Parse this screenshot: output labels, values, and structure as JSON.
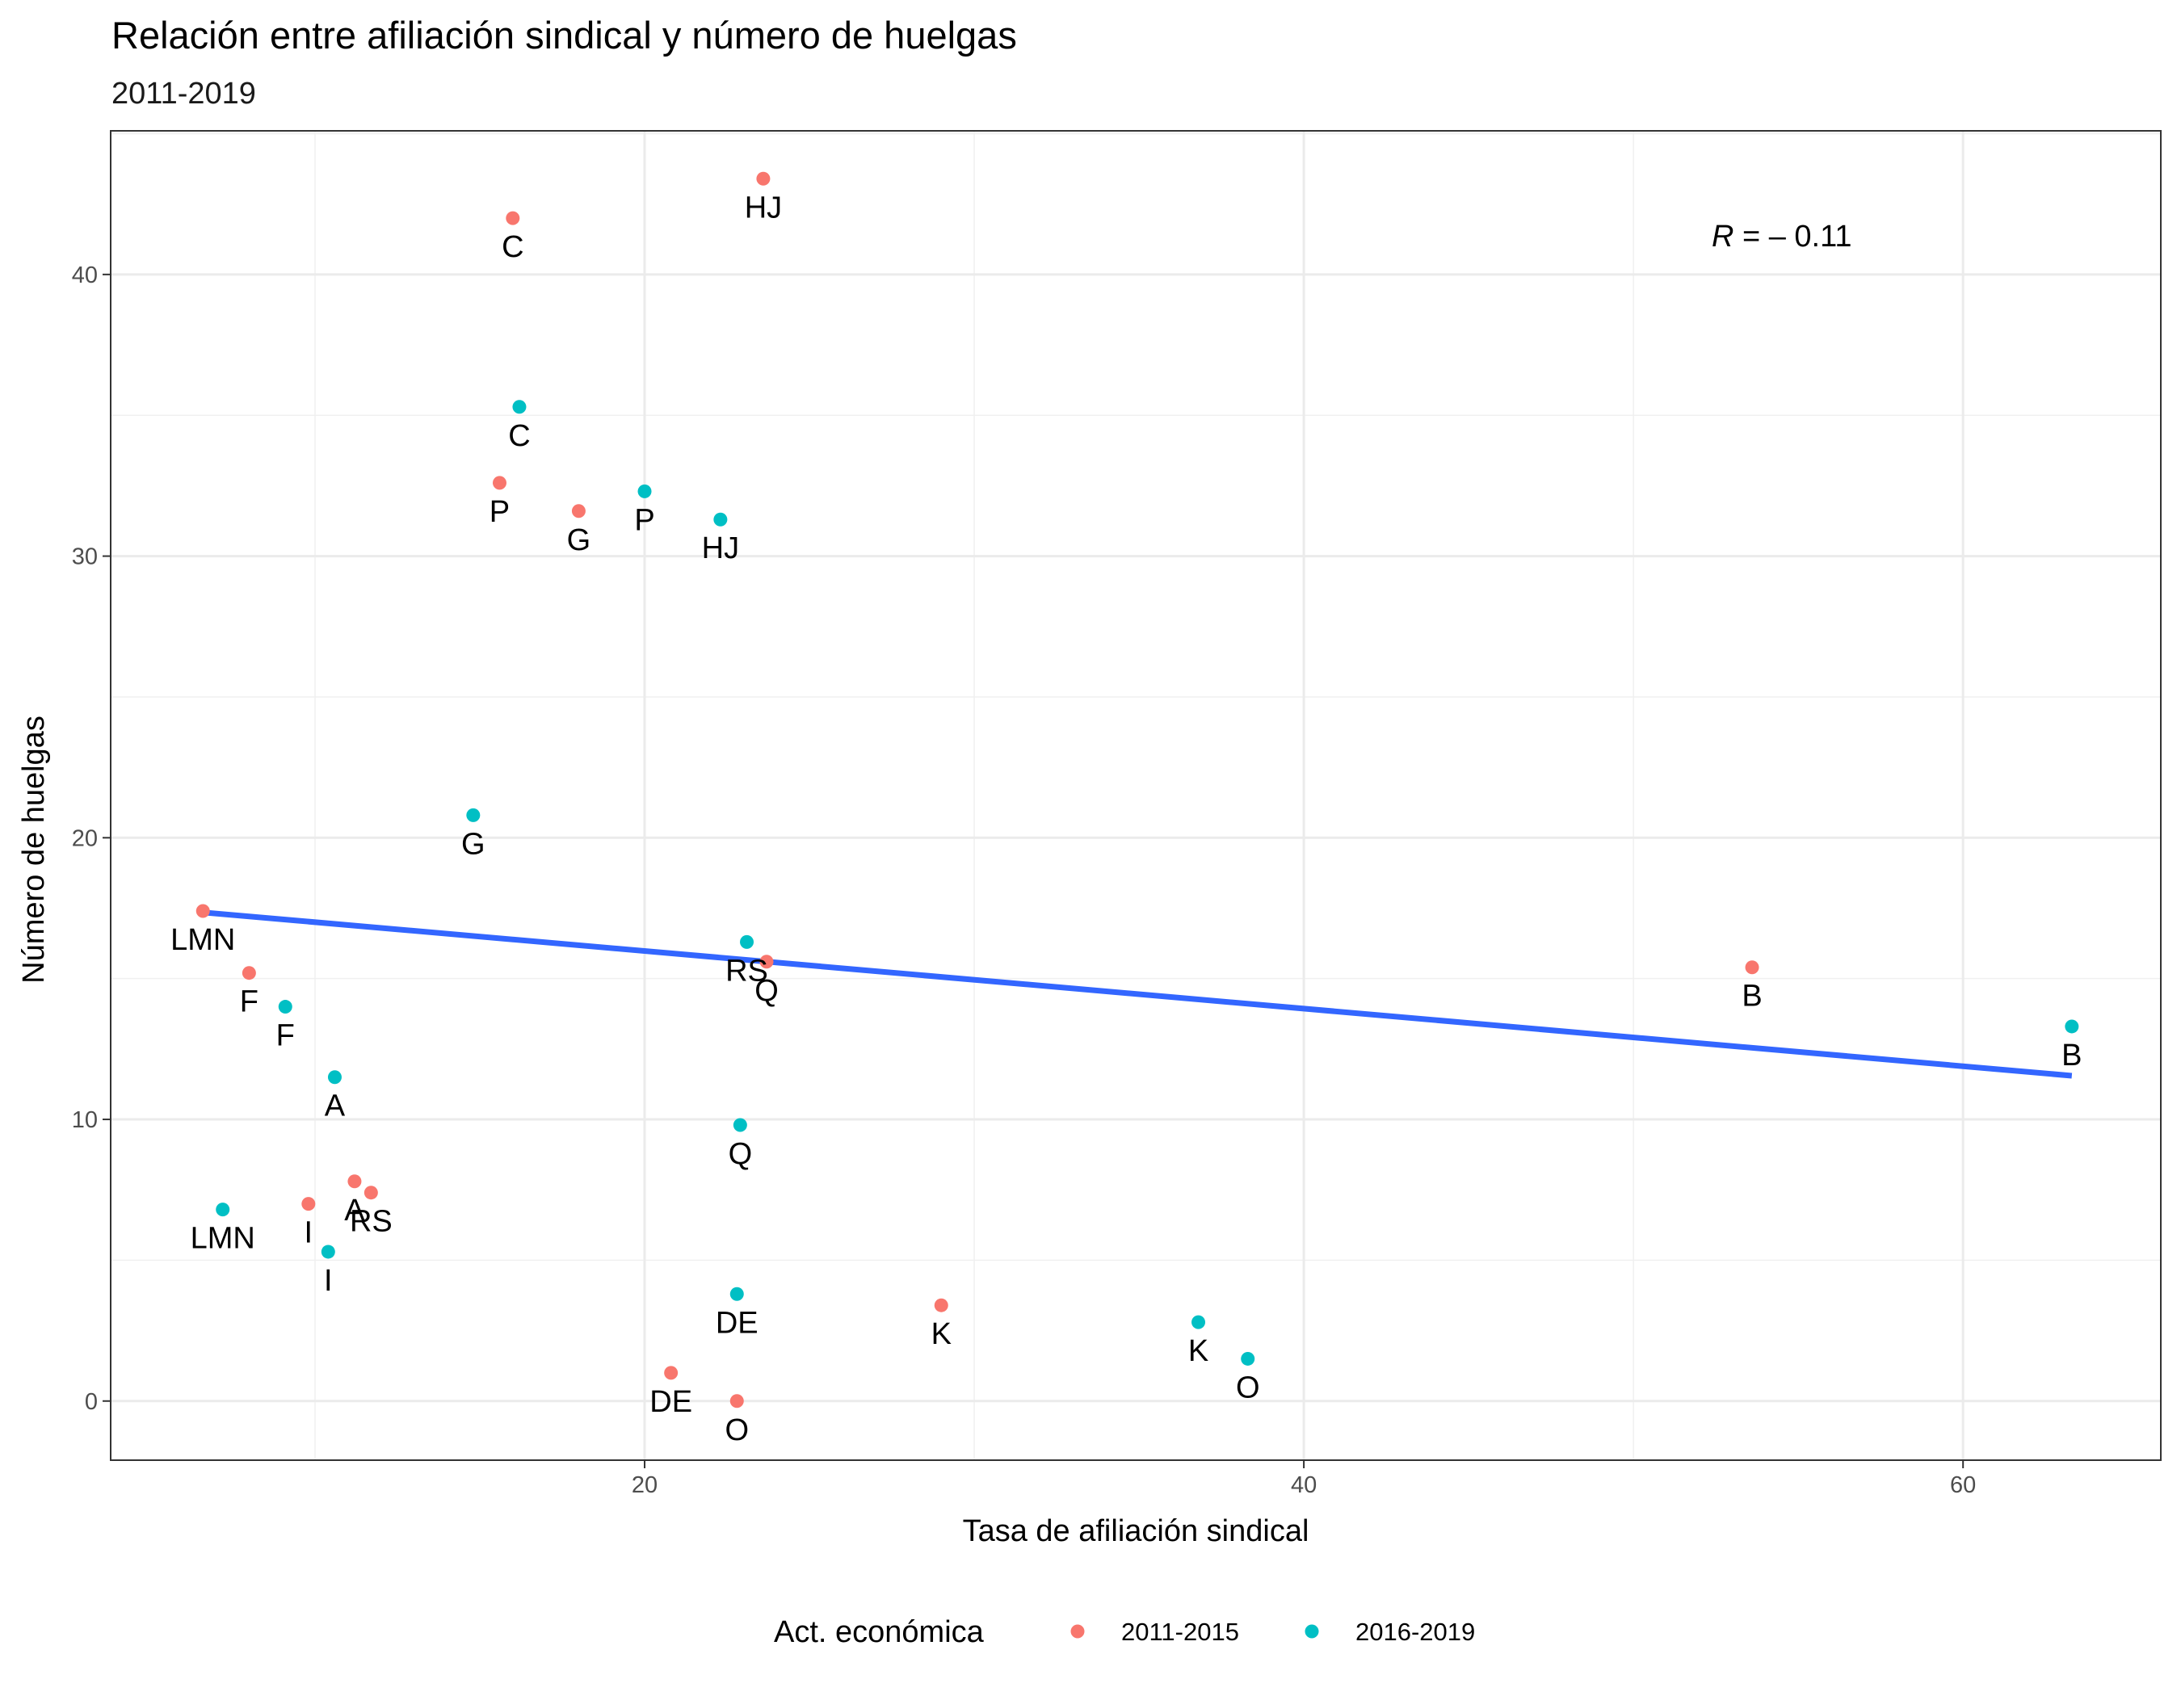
{
  "chart_data": {
    "type": "scatter",
    "title": "Relación entre afiliación sindical y número de huelgas",
    "subtitle": "2011-2019",
    "xlabel": "Tasa de afiliación sindical",
    "ylabel": "Número de huelgas",
    "xlim": [
      3.8,
      66.0
    ],
    "ylim": [
      -2.1,
      45.1
    ],
    "x_ticks": [
      20,
      40,
      60
    ],
    "y_ticks": [
      0,
      10,
      20,
      30,
      40
    ],
    "x_tick_labels": [
      "20",
      "40",
      "60"
    ],
    "y_tick_labels": [
      "0",
      "10",
      "20",
      "30",
      "40"
    ],
    "grid": true,
    "legend": {
      "title": "Act. económica",
      "placement": "bottom",
      "entries": [
        "2011-2015",
        "2016-2019"
      ]
    },
    "colors": {
      "2011-2015": "#F8766D",
      "2016-2019": "#00BFC4",
      "trend": "#3366FF"
    },
    "series": [
      {
        "name": "2011-2015",
        "points": [
          {
            "label": "HJ",
            "x": 23.6,
            "y": 43.4
          },
          {
            "label": "C",
            "x": 16.0,
            "y": 42.0
          },
          {
            "label": "P",
            "x": 15.6,
            "y": 32.6
          },
          {
            "label": "G",
            "x": 18.0,
            "y": 31.6
          },
          {
            "label": "LMN",
            "x": 6.6,
            "y": 17.4
          },
          {
            "label": "Q",
            "x": 23.7,
            "y": 15.6
          },
          {
            "label": "B",
            "x": 53.6,
            "y": 15.4
          },
          {
            "label": "F",
            "x": 8.0,
            "y": 15.2
          },
          {
            "label": "A",
            "x": 11.2,
            "y": 7.8
          },
          {
            "label": "RS",
            "x": 11.7,
            "y": 7.4
          },
          {
            "label": "I",
            "x": 9.8,
            "y": 7.0
          },
          {
            "label": "K",
            "x": 29.0,
            "y": 3.4
          },
          {
            "label": "DE",
            "x": 20.8,
            "y": 1.0
          },
          {
            "label": "O",
            "x": 22.8,
            "y": 0.0
          }
        ]
      },
      {
        "name": "2016-2019",
        "points": [
          {
            "label": "C",
            "x": 16.2,
            "y": 35.3
          },
          {
            "label": "P",
            "x": 20.0,
            "y": 32.3
          },
          {
            "label": "HJ",
            "x": 22.3,
            "y": 31.3
          },
          {
            "label": "G",
            "x": 14.8,
            "y": 20.8
          },
          {
            "label": "RS",
            "x": 23.1,
            "y": 16.3
          },
          {
            "label": "F",
            "x": 9.1,
            "y": 14.0
          },
          {
            "label": "B",
            "x": 63.3,
            "y": 13.3
          },
          {
            "label": "A",
            "x": 10.6,
            "y": 11.5
          },
          {
            "label": "Q",
            "x": 22.9,
            "y": 9.8
          },
          {
            "label": "LMN",
            "x": 7.2,
            "y": 6.8
          },
          {
            "label": "I",
            "x": 10.4,
            "y": 5.3
          },
          {
            "label": "DE",
            "x": 22.8,
            "y": 3.8
          },
          {
            "label": "K",
            "x": 36.8,
            "y": 2.8
          },
          {
            "label": "O",
            "x": 38.3,
            "y": 1.5
          }
        ]
      }
    ],
    "trend_line": {
      "x": [
        6.6,
        63.3
      ],
      "y": [
        17.35,
        11.55
      ]
    },
    "annotation": {
      "r_symbol": "R",
      "r_value": " = – 0.11",
      "x": 54.5,
      "y": 41.0
    }
  }
}
